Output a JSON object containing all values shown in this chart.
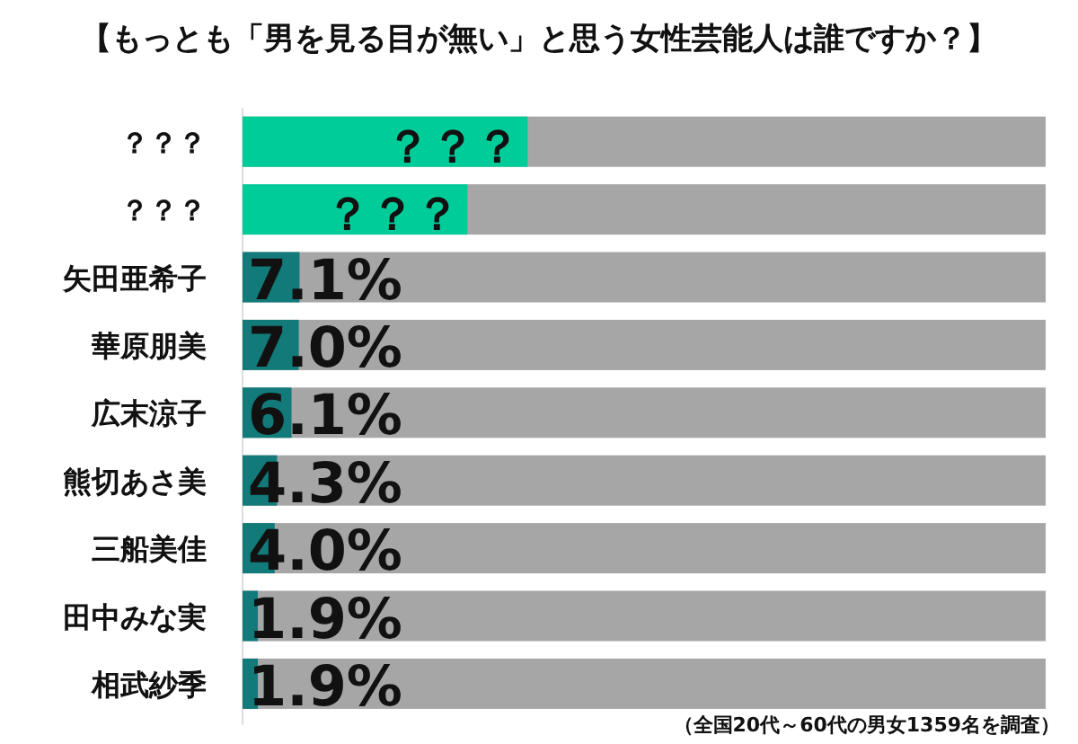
{
  "chart_data": {
    "type": "bar",
    "orientation": "horizontal",
    "title": "【もっとも「男を見る目が無い」と思う女性芸能人は誰ですか？】",
    "categories": [
      "？？？",
      "？？？",
      "矢田亜希子",
      "華原朋美",
      "広末涼子",
      "熊切あさ美",
      "三船美佳",
      "田中みな実",
      "相武紗季"
    ],
    "values": [
      35.5,
      28,
      7.1,
      7.0,
      6.1,
      4.3,
      4.0,
      1.9,
      1.9
    ],
    "value_labels": [
      "？？？",
      "？？？",
      "7.1%",
      "7.0%",
      "6.1%",
      "4.3%",
      "4.0%",
      "1.9%",
      "1.9%"
    ],
    "colors": [
      "#00cc99",
      "#00cc99",
      "#137a7a",
      "#137a7a",
      "#137a7a",
      "#137a7a",
      "#137a7a",
      "#137a7a",
      "#137a7a"
    ],
    "xlim": [
      0,
      100
    ],
    "bands": [
      {
        "axis": "x",
        "from": 0,
        "to": 100,
        "color": "#a6a6a6"
      }
    ],
    "annotations": [
      "（全国20代～60代の男女1359名を調査）"
    ]
  }
}
